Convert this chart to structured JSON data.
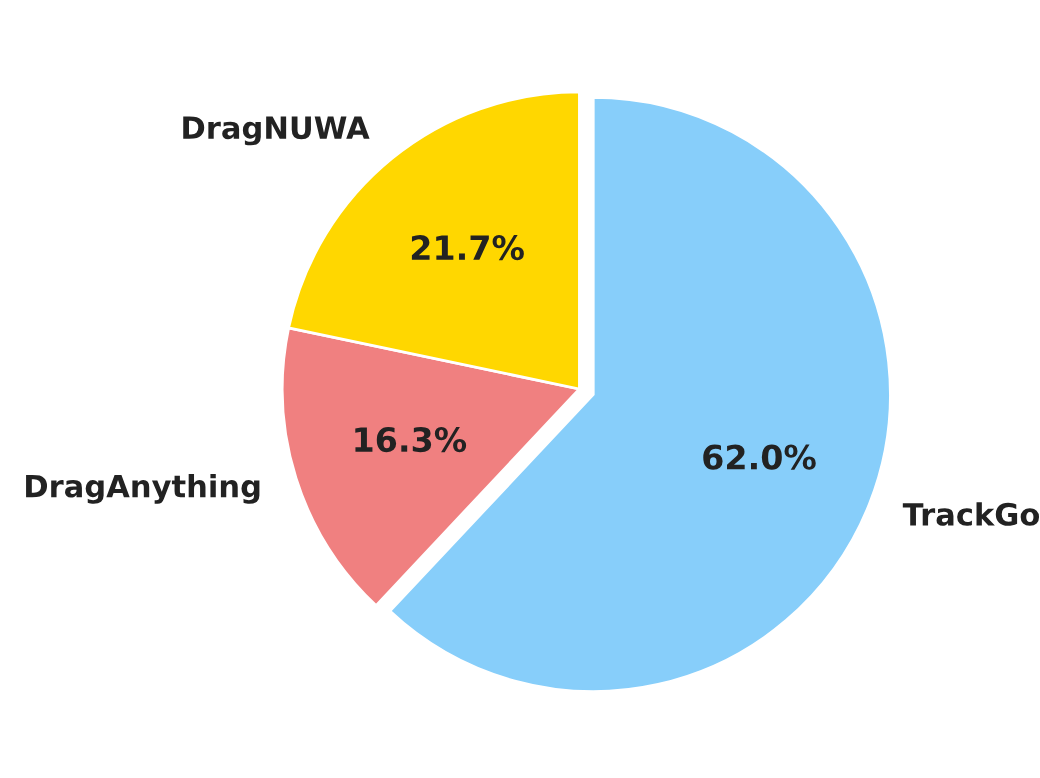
{
  "chart_data": {
    "type": "pie",
    "categories": [
      "TrackGo",
      "DragAnything",
      "DragNUWA"
    ],
    "values": [
      62.0,
      16.3,
      21.7
    ],
    "colors": [
      "#87cefa",
      "#f08080",
      "#ffd700"
    ],
    "value_labels": [
      "62.0%",
      "16.3%",
      "21.7%"
    ]
  }
}
